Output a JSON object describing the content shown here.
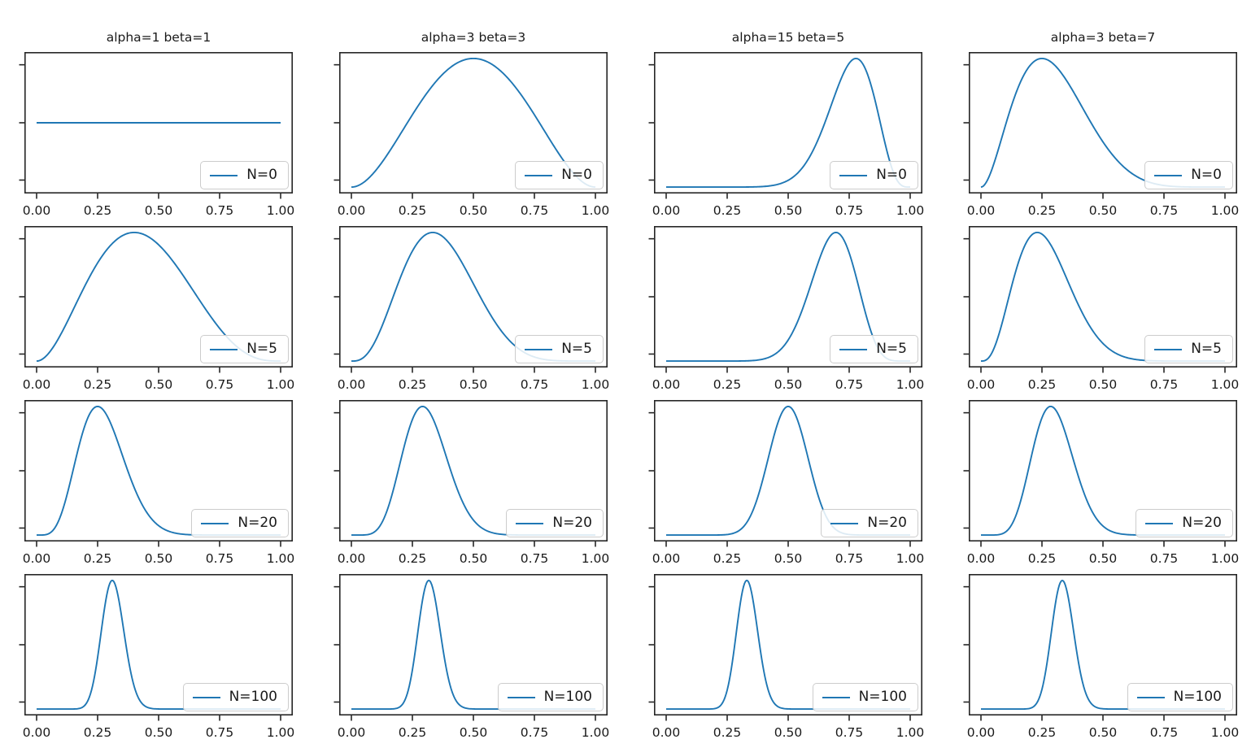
{
  "chart_data": {
    "type": "line",
    "description": "4x4 grid of Beta distribution curves: columns are priors (alpha,beta), rows are posteriors after N observations",
    "x_range": [
      0,
      1
    ],
    "xlim": [
      -0.05,
      1.05
    ],
    "x_tick_labels": [
      "0.00",
      "0.25",
      "0.50",
      "0.75",
      "1.00"
    ],
    "y_tick_labels": [],
    "grid": false,
    "legend_position": "lower right",
    "line_color": "#1f77b4",
    "axes_color": "#262626",
    "tick_label_color": "#1a1a1a",
    "legend_border_color": "#cccccc",
    "columns": [
      {
        "title": "alpha=1 beta=1",
        "prior": {
          "alpha": 1,
          "beta": 1
        }
      },
      {
        "title": "alpha=3 beta=3",
        "prior": {
          "alpha": 3,
          "beta": 3
        }
      },
      {
        "title": "alpha=15 beta=5",
        "prior": {
          "alpha": 15,
          "beta": 5
        }
      },
      {
        "title": "alpha=3 beta=7",
        "prior": {
          "alpha": 3,
          "beta": 7
        }
      }
    ],
    "rows": [
      {
        "legend": "N=0",
        "n_observations": 0
      },
      {
        "legend": "N=5",
        "n_observations": 5
      },
      {
        "legend": "N=20",
        "n_observations": 20
      },
      {
        "legend": "N=100",
        "n_observations": 100
      }
    ],
    "subplots": [
      {
        "row": 0,
        "col": 0,
        "legend": "N=0",
        "distribution": "beta",
        "alpha": 1,
        "beta": 1,
        "flat": true,
        "peak_x": null
      },
      {
        "row": 0,
        "col": 1,
        "legend": "N=0",
        "distribution": "beta",
        "alpha": 3,
        "beta": 3,
        "flat": false,
        "peak_x": 0.5
      },
      {
        "row": 0,
        "col": 2,
        "legend": "N=0",
        "distribution": "beta",
        "alpha": 15,
        "beta": 5,
        "flat": false,
        "peak_x": 0.78
      },
      {
        "row": 0,
        "col": 3,
        "legend": "N=0",
        "distribution": "beta",
        "alpha": 3,
        "beta": 7,
        "flat": false,
        "peak_x": 0.25
      },
      {
        "row": 1,
        "col": 0,
        "legend": "N=5",
        "distribution": "beta",
        "alpha": 3,
        "beta": 4,
        "flat": false,
        "peak_x": 0.4
      },
      {
        "row": 1,
        "col": 1,
        "legend": "N=5",
        "distribution": "beta",
        "alpha": 4,
        "beta": 7,
        "flat": false,
        "peak_x": 0.33
      },
      {
        "row": 1,
        "col": 2,
        "legend": "N=5",
        "distribution": "beta",
        "alpha": 17,
        "beta": 8,
        "flat": false,
        "peak_x": 0.7
      },
      {
        "row": 1,
        "col": 3,
        "legend": "N=5",
        "distribution": "beta",
        "alpha": 4,
        "beta": 11,
        "flat": false,
        "peak_x": 0.23
      },
      {
        "row": 2,
        "col": 0,
        "legend": "N=20",
        "distribution": "beta",
        "alpha": 6,
        "beta": 16,
        "flat": false,
        "peak_x": 0.25
      },
      {
        "row": 2,
        "col": 1,
        "legend": "N=20",
        "distribution": "beta",
        "alpha": 8,
        "beta": 18,
        "flat": false,
        "peak_x": 0.29
      },
      {
        "row": 2,
        "col": 2,
        "legend": "N=20",
        "distribution": "beta",
        "alpha": 20,
        "beta": 20,
        "flat": false,
        "peak_x": 0.5
      },
      {
        "row": 2,
        "col": 3,
        "legend": "N=20",
        "distribution": "beta",
        "alpha": 9,
        "beta": 21,
        "flat": false,
        "peak_x": 0.29
      },
      {
        "row": 3,
        "col": 0,
        "legend": "N=100",
        "distribution": "beta",
        "alpha": 32,
        "beta": 70,
        "flat": false,
        "peak_x": 0.31
      },
      {
        "row": 3,
        "col": 1,
        "legend": "N=100",
        "distribution": "beta",
        "alpha": 34,
        "beta": 72,
        "flat": false,
        "peak_x": 0.32
      },
      {
        "row": 3,
        "col": 2,
        "legend": "N=100",
        "distribution": "beta",
        "alpha": 40,
        "beta": 80,
        "flat": false,
        "peak_x": 0.33
      },
      {
        "row": 3,
        "col": 3,
        "legend": "N=100",
        "distribution": "beta",
        "alpha": 37,
        "beta": 73,
        "flat": false,
        "peak_x": 0.33
      }
    ]
  }
}
